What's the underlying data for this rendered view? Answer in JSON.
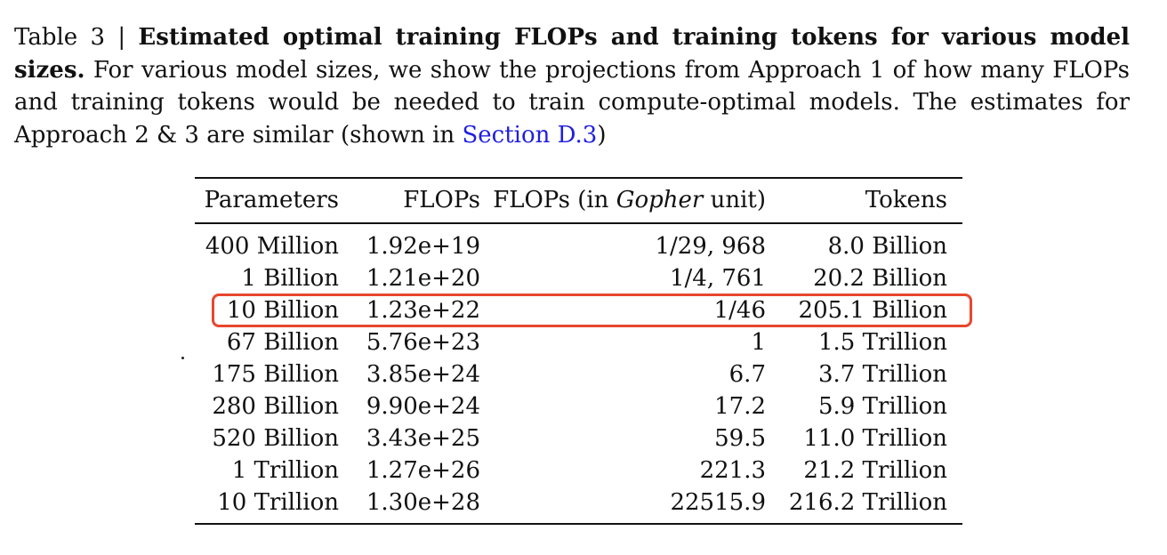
{
  "caption": {
    "label": "Table 3 | ",
    "title": "Estimated optimal training FLOPs and training tokens for various model sizes.",
    "body": " For various model sizes, we show the projections from Approach 1 of how many FLOPs and training tokens would be needed to train compute-optimal models. The estimates for Approach 2 & 3 are similar (shown in ",
    "link_text": "Section D.3",
    "tail": ")"
  },
  "table": {
    "headers": {
      "parameters": "Parameters",
      "flops": "FLOPs",
      "flops_gopher_prefix": "FLOPs (in ",
      "flops_gopher_italic": "Gopher",
      "flops_gopher_suffix": " unit)",
      "tokens": "Tokens"
    },
    "rows": [
      {
        "parameters": "400 Million",
        "flops": "1.92e+19",
        "gopher": "1/29, 968",
        "tokens": "8.0 Billion"
      },
      {
        "parameters": "1 Billion",
        "flops": "1.21e+20",
        "gopher": "1/4, 761",
        "tokens": "20.2 Billion"
      },
      {
        "parameters": "10 Billion",
        "flops": "1.23e+22",
        "gopher": "1/46",
        "tokens": "205.1 Billion",
        "highlighted": true
      },
      {
        "parameters": "67 Billion",
        "flops": "5.76e+23",
        "gopher": "1",
        "tokens": "1.5 Trillion"
      },
      {
        "parameters": "175 Billion",
        "flops": "3.85e+24",
        "gopher": "6.7",
        "tokens": "3.7 Trillion"
      },
      {
        "parameters": "280 Billion",
        "flops": "9.90e+24",
        "gopher": "17.2",
        "tokens": "5.9 Trillion"
      },
      {
        "parameters": "520 Billion",
        "flops": "3.43e+25",
        "gopher": "59.5",
        "tokens": "11.0 Trillion"
      },
      {
        "parameters": "1 Trillion",
        "flops": "1.27e+26",
        "gopher": "221.3",
        "tokens": "21.2 Trillion"
      },
      {
        "parameters": "10 Trillion",
        "flops": "1.30e+28",
        "gopher": "22515.9",
        "tokens": "216.2 Trillion"
      }
    ]
  },
  "colors": {
    "highlight": "#e8472f",
    "link": "#1f1fe0",
    "text": "#111111"
  }
}
